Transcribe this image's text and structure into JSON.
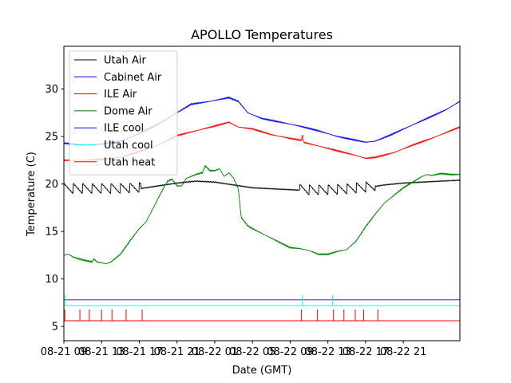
{
  "chart_data": {
    "type": "line",
    "title": "APOLLO Temperatures",
    "xlabel": "Date (GMT)",
    "ylabel": "Temperature (C)",
    "xlim": [
      0,
      42
    ],
    "ylim": [
      3.5,
      34.5
    ],
    "yticks": [
      5,
      10,
      15,
      20,
      25,
      30
    ],
    "xticks": [
      {
        "x": 0,
        "label": "08-21 09"
      },
      {
        "x": 4,
        "label": "08-21 13"
      },
      {
        "x": 8,
        "label": "08-21 17"
      },
      {
        "x": 12,
        "label": "08-21 21"
      },
      {
        "x": 16,
        "label": "08-22 01"
      },
      {
        "x": 20,
        "label": "08-22 05"
      },
      {
        "x": 24,
        "label": "08-22 09"
      },
      {
        "x": 28,
        "label": "08-22 13"
      },
      {
        "x": 32,
        "label": "08-22 17"
      },
      {
        "x": 36,
        "label": "08-22 21"
      }
    ],
    "legend": {
      "position": "top-left"
    },
    "series": [
      {
        "name": "Utah Air",
        "color": "#000000",
        "points": [
          [
            0,
            19.4
          ],
          [
            2,
            19.4
          ],
          [
            4,
            19.4
          ],
          [
            6,
            19.4
          ],
          [
            8,
            19.5
          ],
          [
            10,
            19.8
          ],
          [
            12,
            20.1
          ],
          [
            14,
            20.3
          ],
          [
            16,
            20.2
          ],
          [
            18,
            19.9
          ],
          [
            20,
            19.6
          ],
          [
            22,
            19.5
          ],
          [
            24,
            19.4
          ],
          [
            26,
            19.3
          ],
          [
            28,
            19.3
          ],
          [
            30,
            19.4
          ],
          [
            32,
            19.6
          ],
          [
            34,
            19.9
          ],
          [
            36,
            20.1
          ],
          [
            38,
            20.2
          ],
          [
            40,
            20.3
          ],
          [
            42,
            20.4
          ]
        ],
        "sawtooth": {
          "ranges": [
            [
              0,
              8.2
            ],
            [
              25,
              33
            ]
          ],
          "period": 1.0,
          "amplitude": 1.1
        }
      },
      {
        "name": "Cabinet Air",
        "color": "#0000ff",
        "points": [
          [
            0,
            24.3
          ],
          [
            2,
            24.1
          ],
          [
            4,
            24.2
          ],
          [
            6,
            24.5
          ],
          [
            8,
            25.3
          ],
          [
            10,
            26.3
          ],
          [
            12,
            27.5
          ],
          [
            13.5,
            28.4
          ],
          [
            15.5,
            28.7
          ],
          [
            17.5,
            29.1
          ],
          [
            18.5,
            28.7
          ],
          [
            19.5,
            27.5
          ],
          [
            21,
            26.9
          ],
          [
            23,
            26.5
          ],
          [
            25,
            26.1
          ],
          [
            27,
            25.6
          ],
          [
            29,
            25.0
          ],
          [
            31,
            24.6
          ],
          [
            32,
            24.4
          ],
          [
            33,
            24.5
          ],
          [
            34.5,
            25.1
          ],
          [
            36.5,
            26.0
          ],
          [
            38.5,
            26.9
          ],
          [
            40.5,
            27.8
          ],
          [
            42,
            28.7
          ]
        ]
      },
      {
        "name": "ILE Air",
        "color": "#ff0000",
        "points": [
          [
            0,
            22.5
          ],
          [
            2,
            22.5
          ],
          [
            4,
            22.6
          ],
          [
            6,
            22.8
          ],
          [
            8,
            23.4
          ],
          [
            10,
            24.1
          ],
          [
            12,
            25.1
          ],
          [
            14,
            25.6
          ],
          [
            16,
            26.1
          ],
          [
            17.5,
            26.5
          ],
          [
            18.5,
            26.0
          ],
          [
            20,
            25.8
          ],
          [
            22,
            25.2
          ],
          [
            24,
            24.8
          ],
          [
            25.2,
            24.6
          ],
          [
            25.3,
            25.3
          ],
          [
            25.4,
            24.4
          ],
          [
            27,
            24.0
          ],
          [
            29,
            23.5
          ],
          [
            31,
            23.0
          ],
          [
            32,
            22.7
          ],
          [
            33,
            22.8
          ],
          [
            35,
            23.3
          ],
          [
            37,
            24.1
          ],
          [
            39,
            24.8
          ],
          [
            41,
            25.6
          ],
          [
            42,
            26.0
          ]
        ]
      },
      {
        "name": "Dome Air",
        "color": "#008000",
        "points": [
          [
            0,
            12.5
          ],
          [
            0.5,
            12.6
          ],
          [
            1,
            12.3
          ],
          [
            2,
            12.0
          ],
          [
            3,
            11.8
          ],
          [
            3.2,
            12.1
          ],
          [
            3.5,
            11.8
          ],
          [
            4.5,
            11.6
          ],
          [
            5,
            11.8
          ],
          [
            6,
            12.6
          ],
          [
            7,
            14.0
          ],
          [
            8,
            15.3
          ],
          [
            8.7,
            16.0
          ],
          [
            9.5,
            17.5
          ],
          [
            10,
            18.5
          ],
          [
            10.7,
            19.8
          ],
          [
            11,
            20.3
          ],
          [
            11.5,
            20.5
          ],
          [
            12,
            19.8
          ],
          [
            12.5,
            19.8
          ],
          [
            13,
            20.6
          ],
          [
            14,
            21.0
          ],
          [
            14.7,
            21.2
          ],
          [
            15,
            21.9
          ],
          [
            15.5,
            21.4
          ],
          [
            16,
            21.4
          ],
          [
            16.5,
            21.6
          ],
          [
            17,
            20.8
          ],
          [
            17.5,
            21.2
          ],
          [
            18,
            20.6
          ],
          [
            18.5,
            19.5
          ],
          [
            18.8,
            16.5
          ],
          [
            19.5,
            15.6
          ],
          [
            20,
            15.3
          ],
          [
            21,
            14.8
          ],
          [
            22,
            14.3
          ],
          [
            23,
            13.8
          ],
          [
            24,
            13.3
          ],
          [
            25,
            13.2
          ],
          [
            26,
            13.0
          ],
          [
            27,
            12.6
          ],
          [
            28,
            12.6
          ],
          [
            29,
            12.9
          ],
          [
            30,
            13.1
          ],
          [
            31,
            14.0
          ],
          [
            32,
            15.5
          ],
          [
            33,
            16.8
          ],
          [
            34,
            18.0
          ],
          [
            35,
            18.8
          ],
          [
            36,
            19.6
          ],
          [
            37,
            20.2
          ],
          [
            38,
            20.8
          ],
          [
            38.5,
            21.0
          ],
          [
            39,
            20.9
          ],
          [
            40,
            21.1
          ],
          [
            41,
            21.0
          ],
          [
            42,
            21.0
          ]
        ]
      },
      {
        "name": "ILE cool",
        "color": "#0000ff",
        "points": [
          [
            0,
            7.8
          ],
          [
            42,
            7.8
          ]
        ]
      },
      {
        "name": "Utah cool",
        "color": "#00ffff",
        "points": [
          [
            0,
            7.2
          ],
          [
            42,
            7.2
          ]
        ],
        "spikes": [
          {
            "x": 0.15,
            "top": 8.3
          },
          {
            "x": 25.3,
            "top": 8.3
          },
          {
            "x": 28.5,
            "top": 8.3
          }
        ]
      },
      {
        "name": "Utah heat",
        "color": "#ff0000",
        "points": [
          [
            0,
            5.6
          ],
          [
            42,
            5.6
          ]
        ],
        "spikes": [
          {
            "x": 0.1,
            "top": 6.8
          },
          {
            "x": 1.7,
            "top": 6.8
          },
          {
            "x": 2.7,
            "top": 6.8
          },
          {
            "x": 4.0,
            "top": 6.8
          },
          {
            "x": 5.1,
            "top": 6.8
          },
          {
            "x": 6.6,
            "top": 6.8
          },
          {
            "x": 8.3,
            "top": 6.8
          },
          {
            "x": 25.2,
            "top": 6.8
          },
          {
            "x": 26.9,
            "top": 6.8
          },
          {
            "x": 28.6,
            "top": 6.8
          },
          {
            "x": 29.7,
            "top": 6.8
          },
          {
            "x": 30.9,
            "top": 6.8
          },
          {
            "x": 31.8,
            "top": 6.8
          },
          {
            "x": 33.3,
            "top": 6.8
          }
        ]
      }
    ]
  }
}
